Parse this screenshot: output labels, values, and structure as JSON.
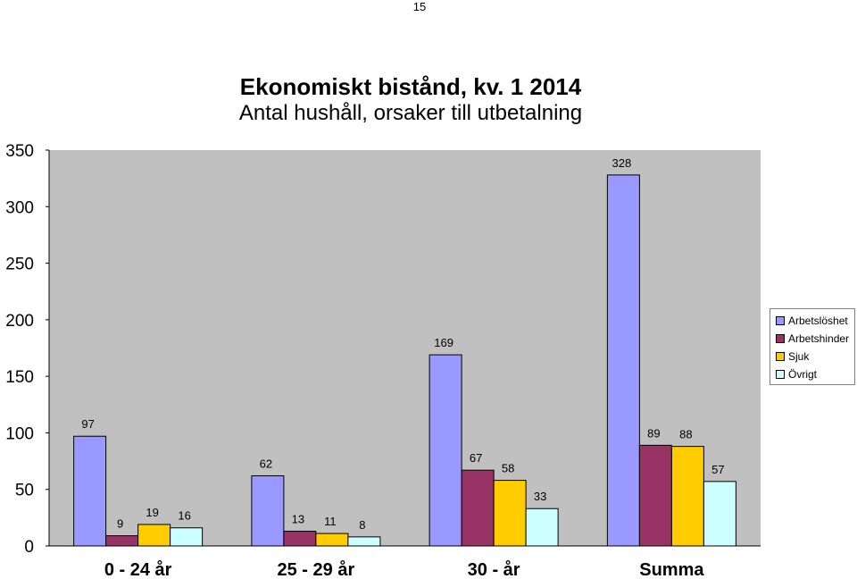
{
  "page": {
    "number": "15"
  },
  "chart_data": {
    "type": "bar",
    "title": "Ekonomiskt bistånd, kv. 1 2014",
    "subtitle": "Antal hushåll, orsaker till utbetalning",
    "categories": [
      "0 - 24 år",
      "25 - 29 år",
      "30 - år",
      "Summa"
    ],
    "series": [
      {
        "name": "Arbetslöshet",
        "values": [
          97,
          62,
          169,
          328
        ],
        "color": "#9999ff"
      },
      {
        "name": "Arbetshinder",
        "values": [
          9,
          13,
          67,
          89
        ],
        "color": "#993366"
      },
      {
        "name": "Sjuk",
        "values": [
          19,
          11,
          58,
          88
        ],
        "color": "#ffcc00"
      },
      {
        "name": "Övrigt",
        "values": [
          16,
          8,
          33,
          57
        ],
        "color": "#ccffff"
      }
    ],
    "ylim": [
      0,
      350
    ],
    "yticks": [
      "0",
      "50",
      "100",
      "150",
      "200",
      "250",
      "300",
      "350"
    ],
    "xlabel": "",
    "ylabel": "",
    "grid": false,
    "plot_background": "#c0c0c0",
    "legend_position": "right"
  }
}
